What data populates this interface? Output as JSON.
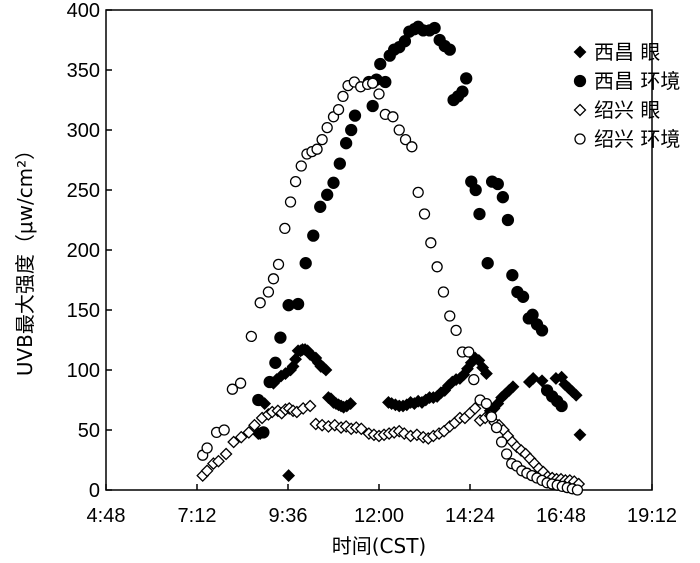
{
  "chart_data": {
    "type": "scatter",
    "xlabel": "时间(CST)",
    "ylabel": "UVB最大强度（μw/cm²）",
    "xlim": [
      288,
      1152
    ],
    "ylim": [
      0,
      400
    ],
    "x_ticks": [
      {
        "value": 288,
        "label": "4:48"
      },
      {
        "value": 432,
        "label": "7:12"
      },
      {
        "value": 576,
        "label": "9:36"
      },
      {
        "value": 720,
        "label": "12:00"
      },
      {
        "value": 864,
        "label": "14:24"
      },
      {
        "value": 1008,
        "label": "16:48"
      },
      {
        "value": 1152,
        "label": "19:12"
      }
    ],
    "y_ticks": [
      0,
      50,
      100,
      150,
      200,
      250,
      300,
      350,
      400
    ],
    "legend_position": "top-right",
    "series": [
      {
        "name": "西昌 眼",
        "marker": "filled-diamond",
        "x": [
          529,
          532,
          539,
          553,
          558,
          565,
          572,
          577,
          580,
          584,
          588,
          592,
          596,
          599,
          603,
          607,
          611,
          616,
          620,
          624,
          628,
          632,
          636,
          640,
          644,
          648,
          652,
          656,
          660,
          664,
          669,
          675,
          735,
          740,
          746,
          752,
          758,
          764,
          770,
          776,
          782,
          788,
          794,
          800,
          806,
          812,
          818,
          824,
          830,
          836,
          842,
          848,
          854,
          860,
          866,
          872,
          878,
          884,
          890,
          896,
          902,
          908,
          914,
          920,
          926,
          932,
          958,
          964,
          978,
          1000,
          1009,
          1014,
          1020,
          1026,
          1032,
          1038
        ],
        "y": [
          47,
          47,
          72,
          89,
          92,
          95,
          97,
          12,
          100,
          103,
          109,
          116,
          116,
          117,
          117,
          116,
          113,
          111,
          110,
          106,
          103,
          102,
          100,
          77,
          76,
          73,
          72,
          71,
          70,
          69,
          70,
          72,
          73,
          72,
          71,
          70,
          70,
          71,
          73,
          72,
          74,
          73,
          75,
          77,
          77,
          78,
          81,
          83,
          87,
          90,
          92,
          93,
          96,
          101,
          106,
          110,
          108,
          102,
          97,
          66,
          68,
          72,
          77,
          80,
          83,
          86,
          90,
          93,
          91,
          93,
          94,
          88,
          85,
          82,
          79,
          46
        ],
        "color": "#000000"
      },
      {
        "name": "西昌 环境",
        "marker": "filled-circle",
        "x": [
          529,
          537,
          547,
          556,
          564,
          577,
          592,
          604,
          616,
          627,
          638,
          648,
          658,
          668,
          676,
          682,
          704,
          710,
          716,
          722,
          730,
          737,
          744,
          752,
          761,
          768,
          776,
          782,
          790,
          800,
          808,
          816,
          824,
          832,
          838,
          845,
          852,
          858,
          866,
          873,
          879,
          892,
          899,
          908,
          916,
          924,
          931,
          939,
          948,
          957,
          963,
          970,
          978,
          986,
          994,
          1002,
          1009
        ],
        "y": [
          75,
          48,
          90,
          106,
          127,
          154,
          155,
          189,
          212,
          236,
          246,
          256,
          272,
          289,
          300,
          312,
          340,
          320,
          342,
          355,
          340,
          362,
          367,
          369,
          374,
          382,
          384,
          386,
          383,
          383,
          385,
          375,
          370,
          367,
          325,
          328,
          332,
          343,
          257,
          250,
          230,
          189,
          257,
          255,
          244,
          225,
          179,
          165,
          161,
          143,
          146,
          138,
          133,
          83,
          78,
          74,
          70
        ],
        "color": "#000000"
      },
      {
        "name": "绍兴 眼",
        "marker": "open-diamond",
        "x": [
          441,
          448,
          458,
          466,
          478,
          490,
          502,
          514,
          523,
          535,
          545,
          551,
          560,
          566,
          572,
          578,
          584,
          590,
          600,
          611,
          620,
          630,
          640,
          650,
          660,
          668,
          676,
          684,
          692,
          704,
          712,
          720,
          728,
          736,
          744,
          752,
          760,
          770,
          780,
          790,
          798,
          806,
          815,
          823,
          832,
          840,
          848,
          856,
          864,
          872,
          880,
          888,
          896,
          903,
          910,
          917,
          924,
          931,
          938,
          945,
          952,
          959,
          966,
          973,
          980,
          987,
          994,
          1001,
          1008,
          1015,
          1022,
          1029,
          1036
        ],
        "y": [
          12,
          16,
          22,
          24,
          30,
          40,
          44,
          48,
          54,
          60,
          63,
          65,
          66,
          64,
          67,
          68,
          66,
          65,
          68,
          70,
          55,
          54,
          53,
          54,
          52,
          53,
          51,
          52,
          51,
          47,
          46,
          45,
          46,
          47,
          48,
          49,
          47,
          45,
          46,
          44,
          43,
          45,
          47,
          49,
          53,
          56,
          60,
          60,
          64,
          68,
          58,
          60,
          62,
          56,
          54,
          50,
          45,
          40,
          36,
          33,
          30,
          26,
          22,
          18,
          15,
          11,
          10,
          9,
          9,
          8,
          8,
          7,
          5
        ],
        "color": "#000000"
      },
      {
        "name": "绍兴 环境",
        "marker": "open-circle",
        "x": [
          441,
          448,
          463,
          475,
          488,
          501,
          518,
          532,
          545,
          553,
          561,
          571,
          580,
          588,
          597,
          606,
          614,
          622,
          630,
          638,
          648,
          656,
          663,
          671,
          681,
          691,
          702,
          710,
          720,
          730,
          742,
          752,
          762,
          772,
          782,
          792,
          802,
          812,
          822,
          832,
          842,
          852,
          862,
          870,
          880,
          890,
          898,
          906,
          914,
          922,
          930,
          938,
          946,
          954,
          962,
          970,
          978,
          986,
          994,
          1002,
          1010,
          1018,
          1026,
          1034
        ],
        "y": [
          29,
          35,
          48,
          50,
          84,
          89,
          128,
          156,
          165,
          176,
          188,
          218,
          240,
          257,
          270,
          280,
          282,
          284,
          292,
          302,
          311,
          317,
          328,
          337,
          340,
          336,
          338,
          339,
          330,
          313,
          311,
          300,
          292,
          286,
          248,
          230,
          206,
          186,
          165,
          145,
          133,
          115,
          115,
          92,
          75,
          72,
          61,
          52,
          40,
          30,
          22,
          20,
          16,
          14,
          12,
          10,
          8,
          6,
          5,
          4,
          3,
          2,
          1,
          0
        ],
        "color": "#000000"
      }
    ]
  }
}
